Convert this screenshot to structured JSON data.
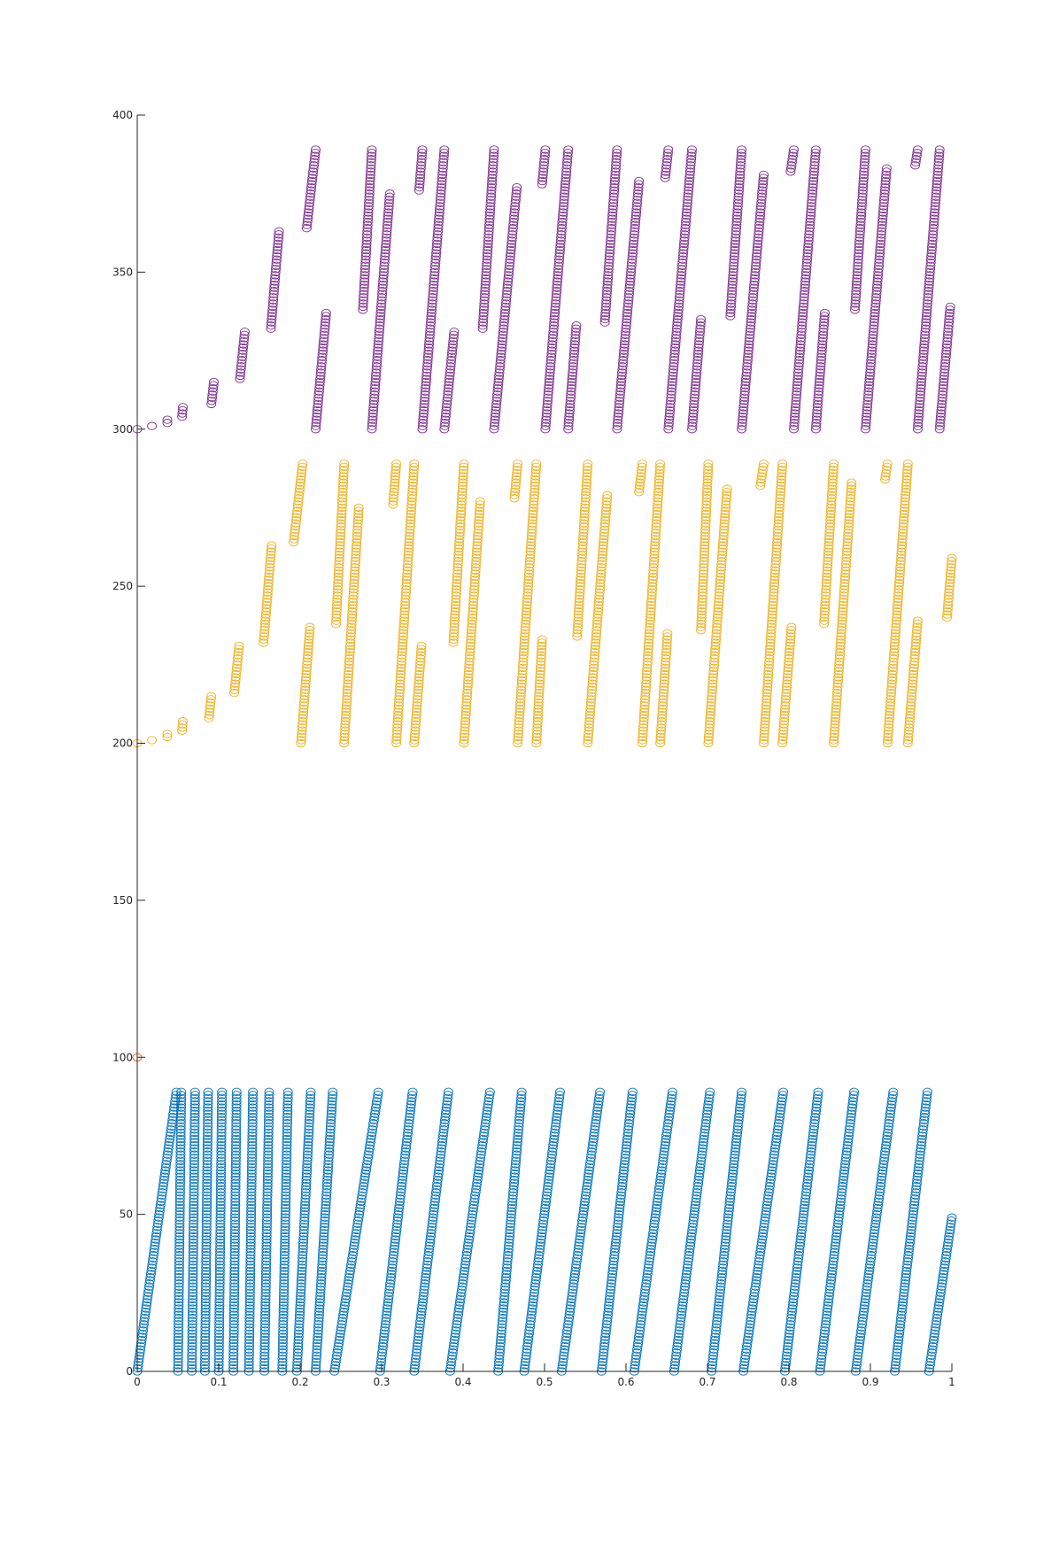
{
  "chart_data": {
    "type": "scatter",
    "title": "",
    "xlabel": "",
    "ylabel": "",
    "xlim": [
      0,
      1
    ],
    "ylim": [
      0,
      400
    ],
    "x_ticks": [
      0,
      0.1,
      0.2,
      0.3,
      0.4,
      0.5,
      0.6,
      0.7,
      0.8,
      0.9,
      1
    ],
    "x_tick_labels": [
      "0",
      "0.1",
      "0.2",
      "0.3",
      "0.4",
      "0.5",
      "0.6",
      "0.7",
      "0.8",
      "0.9",
      "1"
    ],
    "y_ticks": [
      0,
      50,
      100,
      150,
      200,
      250,
      300,
      350,
      400
    ],
    "y_tick_labels": [
      "0",
      "50",
      "100",
      "150",
      "200",
      "250",
      "300",
      "350",
      "400"
    ],
    "grid": false,
    "legend": "none",
    "marker": "circle",
    "series": [
      {
        "color": "#0072BD",
        "offset": 0,
        "runs": [
          {
            "x0": 0.0,
            "x1": 0.048,
            "y0": 0,
            "y1": 89
          },
          {
            "x0": 0.05,
            "x1": 0.054,
            "y0": 0,
            "y1": 89
          },
          {
            "x0": 0.067,
            "x1": 0.071,
            "y0": 0,
            "y1": 89
          },
          {
            "x0": 0.083,
            "x1": 0.087,
            "y0": 0,
            "y1": 89
          },
          {
            "x0": 0.1,
            "x1": 0.104,
            "y0": 0,
            "y1": 89
          },
          {
            "x0": 0.118,
            "x1": 0.122,
            "y0": 0,
            "y1": 89
          },
          {
            "x0": 0.137,
            "x1": 0.142,
            "y0": 0,
            "y1": 89
          },
          {
            "x0": 0.156,
            "x1": 0.162,
            "y0": 0,
            "y1": 89
          },
          {
            "x0": 0.178,
            "x1": 0.185,
            "y0": 0,
            "y1": 89
          },
          {
            "x0": 0.196,
            "x1": 0.213,
            "y0": 0,
            "y1": 89
          },
          {
            "x0": 0.219,
            "x1": 0.24,
            "y0": 0,
            "y1": 89
          },
          {
            "x0": 0.242,
            "x1": 0.296,
            "y0": 0,
            "y1": 89
          },
          {
            "x0": 0.298,
            "x1": 0.338,
            "y0": 0,
            "y1": 89
          },
          {
            "x0": 0.34,
            "x1": 0.382,
            "y0": 0,
            "y1": 89
          },
          {
            "x0": 0.384,
            "x1": 0.433,
            "y0": 0,
            "y1": 89
          },
          {
            "x0": 0.443,
            "x1": 0.472,
            "y0": 0,
            "y1": 89
          },
          {
            "x0": 0.475,
            "x1": 0.519,
            "y0": 0,
            "y1": 89
          },
          {
            "x0": 0.521,
            "x1": 0.568,
            "y0": 0,
            "y1": 89
          },
          {
            "x0": 0.57,
            "x1": 0.608,
            "y0": 0,
            "y1": 89
          },
          {
            "x0": 0.61,
            "x1": 0.657,
            "y0": 0,
            "y1": 89
          },
          {
            "x0": 0.659,
            "x1": 0.703,
            "y0": 0,
            "y1": 89
          },
          {
            "x0": 0.705,
            "x1": 0.742,
            "y0": 0,
            "y1": 89
          },
          {
            "x0": 0.744,
            "x1": 0.793,
            "y0": 0,
            "y1": 89
          },
          {
            "x0": 0.795,
            "x1": 0.836,
            "y0": 0,
            "y1": 89
          },
          {
            "x0": 0.838,
            "x1": 0.88,
            "y0": 0,
            "y1": 89
          },
          {
            "x0": 0.882,
            "x1": 0.928,
            "y0": 0,
            "y1": 89
          },
          {
            "x0": 0.93,
            "x1": 0.97,
            "y0": 0,
            "y1": 89
          },
          {
            "x0": 0.972,
            "x1": 1.0,
            "y0": 0,
            "y1": 49
          }
        ]
      },
      {
        "color": "#D95319",
        "offset": 100,
        "runs": [
          {
            "x0": 0.0,
            "x1": 0.007,
            "y0": 100,
            "y1": 100
          }
        ]
      },
      {
        "color": "#EDB120",
        "offset": 200,
        "runs": [
          {
            "x0": 0.0,
            "x1": 0.005,
            "y0": 200,
            "y1": 200
          },
          {
            "x0": 0.018,
            "x1": 0.018,
            "y0": 201,
            "y1": 201
          },
          {
            "x0": 0.037,
            "x1": 0.037,
            "y0": 202,
            "y1": 203
          },
          {
            "x0": 0.055,
            "x1": 0.056,
            "y0": 204,
            "y1": 207
          },
          {
            "x0": 0.088,
            "x1": 0.091,
            "y0": 208,
            "y1": 215
          },
          {
            "x0": 0.119,
            "x1": 0.125,
            "y0": 216,
            "y1": 231
          },
          {
            "x0": 0.155,
            "x1": 0.165,
            "y0": 232,
            "y1": 263
          },
          {
            "x0": 0.192,
            "x1": 0.203,
            "y0": 264,
            "y1": 289
          },
          {
            "x0": 0.201,
            "x1": 0.212,
            "y0": 200,
            "y1": 237
          },
          {
            "x0": 0.244,
            "x1": 0.254,
            "y0": 238,
            "y1": 289
          },
          {
            "x0": 0.254,
            "x1": 0.272,
            "y0": 200,
            "y1": 275
          },
          {
            "x0": 0.314,
            "x1": 0.318,
            "y0": 276,
            "y1": 289
          },
          {
            "x0": 0.318,
            "x1": 0.34,
            "y0": 200,
            "y1": 289
          },
          {
            "x0": 0.34,
            "x1": 0.349,
            "y0": 200,
            "y1": 231
          },
          {
            "x0": 0.388,
            "x1": 0.401,
            "y0": 232,
            "y1": 289
          },
          {
            "x0": 0.401,
            "x1": 0.421,
            "y0": 200,
            "y1": 277
          },
          {
            "x0": 0.463,
            "x1": 0.467,
            "y0": 278,
            "y1": 289
          },
          {
            "x0": 0.467,
            "x1": 0.49,
            "y0": 200,
            "y1": 289
          },
          {
            "x0": 0.49,
            "x1": 0.497,
            "y0": 200,
            "y1": 233
          },
          {
            "x0": 0.54,
            "x1": 0.553,
            "y0": 234,
            "y1": 289
          },
          {
            "x0": 0.553,
            "x1": 0.577,
            "y0": 200,
            "y1": 279
          },
          {
            "x0": 0.616,
            "x1": 0.62,
            "y0": 280,
            "y1": 289
          },
          {
            "x0": 0.62,
            "x1": 0.642,
            "y0": 200,
            "y1": 289
          },
          {
            "x0": 0.642,
            "x1": 0.651,
            "y0": 200,
            "y1": 235
          },
          {
            "x0": 0.692,
            "x1": 0.701,
            "y0": 236,
            "y1": 289
          },
          {
            "x0": 0.701,
            "x1": 0.724,
            "y0": 200,
            "y1": 281
          },
          {
            "x0": 0.765,
            "x1": 0.769,
            "y0": 282,
            "y1": 289
          },
          {
            "x0": 0.769,
            "x1": 0.792,
            "y0": 200,
            "y1": 289
          },
          {
            "x0": 0.792,
            "x1": 0.803,
            "y0": 200,
            "y1": 237
          },
          {
            "x0": 0.843,
            "x1": 0.855,
            "y0": 238,
            "y1": 289
          },
          {
            "x0": 0.855,
            "x1": 0.877,
            "y0": 200,
            "y1": 283
          },
          {
            "x0": 0.918,
            "x1": 0.921,
            "y0": 284,
            "y1": 289
          },
          {
            "x0": 0.921,
            "x1": 0.946,
            "y0": 200,
            "y1": 289
          },
          {
            "x0": 0.946,
            "x1": 0.958,
            "y0": 200,
            "y1": 239
          },
          {
            "x0": 0.994,
            "x1": 1.0,
            "y0": 240,
            "y1": 259
          }
        ]
      },
      {
        "color": "#7E2F8E",
        "offset": 300,
        "runs": [
          {
            "x0": 0.0,
            "x1": 0.005,
            "y0": 300,
            "y1": 300
          },
          {
            "x0": 0.018,
            "x1": 0.018,
            "y0": 301,
            "y1": 301
          },
          {
            "x0": 0.037,
            "x1": 0.037,
            "y0": 302,
            "y1": 303
          },
          {
            "x0": 0.055,
            "x1": 0.056,
            "y0": 304,
            "y1": 307
          },
          {
            "x0": 0.091,
            "x1": 0.094,
            "y0": 308,
            "y1": 315
          },
          {
            "x0": 0.126,
            "x1": 0.132,
            "y0": 316,
            "y1": 331
          },
          {
            "x0": 0.164,
            "x1": 0.174,
            "y0": 332,
            "y1": 363
          },
          {
            "x0": 0.208,
            "x1": 0.219,
            "y0": 364,
            "y1": 389
          },
          {
            "x0": 0.219,
            "x1": 0.232,
            "y0": 300,
            "y1": 337
          },
          {
            "x0": 0.277,
            "x1": 0.288,
            "y0": 338,
            "y1": 389
          },
          {
            "x0": 0.288,
            "x1": 0.31,
            "y0": 300,
            "y1": 375
          },
          {
            "x0": 0.346,
            "x1": 0.35,
            "y0": 376,
            "y1": 389
          },
          {
            "x0": 0.35,
            "x1": 0.377,
            "y0": 300,
            "y1": 389
          },
          {
            "x0": 0.377,
            "x1": 0.389,
            "y0": 300,
            "y1": 331
          },
          {
            "x0": 0.424,
            "x1": 0.438,
            "y0": 332,
            "y1": 389
          },
          {
            "x0": 0.438,
            "x1": 0.466,
            "y0": 300,
            "y1": 377
          },
          {
            "x0": 0.497,
            "x1": 0.501,
            "y0": 378,
            "y1": 389
          },
          {
            "x0": 0.501,
            "x1": 0.529,
            "y0": 300,
            "y1": 389
          },
          {
            "x0": 0.529,
            "x1": 0.539,
            "y0": 300,
            "y1": 333
          },
          {
            "x0": 0.574,
            "x1": 0.589,
            "y0": 334,
            "y1": 389
          },
          {
            "x0": 0.589,
            "x1": 0.616,
            "y0": 300,
            "y1": 379
          },
          {
            "x0": 0.648,
            "x1": 0.652,
            "y0": 380,
            "y1": 389
          },
          {
            "x0": 0.652,
            "x1": 0.681,
            "y0": 300,
            "y1": 389
          },
          {
            "x0": 0.681,
            "x1": 0.692,
            "y0": 300,
            "y1": 335
          },
          {
            "x0": 0.728,
            "x1": 0.742,
            "y0": 336,
            "y1": 389
          },
          {
            "x0": 0.742,
            "x1": 0.769,
            "y0": 300,
            "y1": 381
          },
          {
            "x0": 0.802,
            "x1": 0.806,
            "y0": 382,
            "y1": 389
          },
          {
            "x0": 0.806,
            "x1": 0.833,
            "y0": 300,
            "y1": 389
          },
          {
            "x0": 0.833,
            "x1": 0.844,
            "y0": 300,
            "y1": 337
          },
          {
            "x0": 0.881,
            "x1": 0.894,
            "y0": 338,
            "y1": 389
          },
          {
            "x0": 0.894,
            "x1": 0.92,
            "y0": 300,
            "y1": 383
          },
          {
            "x0": 0.955,
            "x1": 0.958,
            "y0": 384,
            "y1": 389
          },
          {
            "x0": 0.958,
            "x1": 0.985,
            "y0": 300,
            "y1": 389
          },
          {
            "x0": 0.985,
            "x1": 0.998,
            "y0": 300,
            "y1": 339
          }
        ]
      }
    ]
  }
}
